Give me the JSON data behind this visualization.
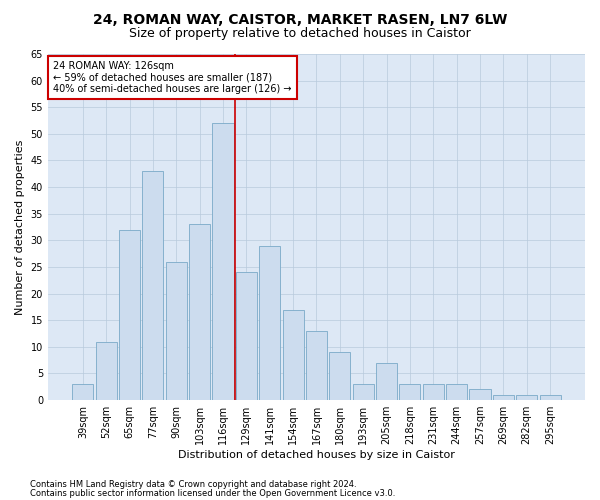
{
  "title1": "24, ROMAN WAY, CAISTOR, MARKET RASEN, LN7 6LW",
  "title2": "Size of property relative to detached houses in Caistor",
  "xlabel": "Distribution of detached houses by size in Caistor",
  "ylabel": "Number of detached properties",
  "categories": [
    "39sqm",
    "52sqm",
    "65sqm",
    "77sqm",
    "90sqm",
    "103sqm",
    "116sqm",
    "129sqm",
    "141sqm",
    "154sqm",
    "167sqm",
    "180sqm",
    "193sqm",
    "205sqm",
    "218sqm",
    "231sqm",
    "244sqm",
    "257sqm",
    "269sqm",
    "282sqm",
    "295sqm"
  ],
  "values": [
    3,
    11,
    32,
    43,
    26,
    33,
    52,
    24,
    29,
    17,
    13,
    9,
    3,
    7,
    3,
    3,
    3,
    2,
    1,
    1,
    1
  ],
  "bar_color": "#ccdcee",
  "bar_edge_color": "#7aaac8",
  "highlight_bar_index": 6,
  "highlight_color": "#cc0000",
  "annotation_text": "24 ROMAN WAY: 126sqm\n← 59% of detached houses are smaller (187)\n40% of semi-detached houses are larger (126) →",
  "annotation_box_color": "#ffffff",
  "annotation_box_edge": "#cc0000",
  "ylim": [
    0,
    65
  ],
  "yticks": [
    0,
    5,
    10,
    15,
    20,
    25,
    30,
    35,
    40,
    45,
    50,
    55,
    60,
    65
  ],
  "footer1": "Contains HM Land Registry data © Crown copyright and database right 2024.",
  "footer2": "Contains public sector information licensed under the Open Government Licence v3.0.",
  "bg_color": "#ffffff",
  "plot_bg_color": "#dde8f5",
  "grid_color": "#b8cadc",
  "title1_fontsize": 10,
  "title2_fontsize": 9,
  "tick_fontsize": 7,
  "axis_label_fontsize": 8,
  "ylabel_fontsize": 8,
  "annotation_fontsize": 7,
  "footer_fontsize": 6
}
